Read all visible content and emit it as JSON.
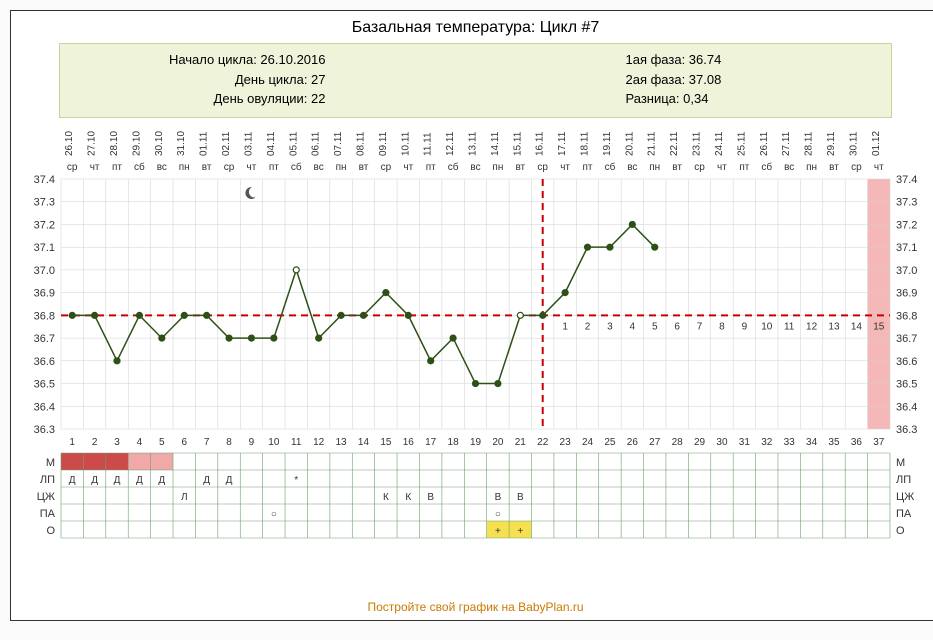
{
  "title": "Базальная температура: Цикл #7",
  "info_left": {
    "l1": "Начало цикла: 26.10.2016",
    "l2": "День цикла: 27",
    "l3": "День овуляции: 22"
  },
  "info_right": {
    "l1": "1ая фаза: 36.74",
    "l2": "2ая фаза: 37.08",
    "l3": "Разница: 0,34"
  },
  "footer": "Постройте свой график на BabyPlan.ru",
  "chart": {
    "type": "line",
    "bg": "#ffffff",
    "grid_color": "#d0d0d0",
    "line_color": "#2d5016",
    "line_width": 1.5,
    "marker_r": 3,
    "coverline": 36.8,
    "coverline_color": "#cc0000",
    "ovu_day": 22,
    "ovu_color": "#cc0000",
    "ylim": [
      36.3,
      37.4
    ],
    "ytick_step": 0.1,
    "dpo_start_day": 23,
    "dpo_color": "#cc5555",
    "pink_col_day": 37,
    "pink_fill": "#f5b8b8",
    "moon_day": 9,
    "days": [
      {
        "n": 1,
        "date": "26.10",
        "dow": "ср",
        "t": 36.8
      },
      {
        "n": 2,
        "date": "27.10",
        "dow": "чт",
        "t": 36.8
      },
      {
        "n": 3,
        "date": "28.10",
        "dow": "пт",
        "t": 36.6
      },
      {
        "n": 4,
        "date": "29.10",
        "dow": "сб",
        "t": 36.8
      },
      {
        "n": 5,
        "date": "30.10",
        "dow": "вс",
        "t": 36.7
      },
      {
        "n": 6,
        "date": "31.10",
        "dow": "пн",
        "t": 36.8
      },
      {
        "n": 7,
        "date": "01.11",
        "dow": "вт",
        "t": 36.8
      },
      {
        "n": 8,
        "date": "02.11",
        "dow": "ср",
        "t": 36.7
      },
      {
        "n": 9,
        "date": "03.11",
        "dow": "чт",
        "t": 36.7
      },
      {
        "n": 10,
        "date": "04.11",
        "dow": "пт",
        "t": 36.7
      },
      {
        "n": 11,
        "date": "05.11",
        "dow": "сб",
        "t": 37.0,
        "open": true
      },
      {
        "n": 12,
        "date": "06.11",
        "dow": "вс",
        "t": 36.7
      },
      {
        "n": 13,
        "date": "07.11",
        "dow": "пн",
        "t": 36.8
      },
      {
        "n": 14,
        "date": "08.11",
        "dow": "вт",
        "t": 36.8
      },
      {
        "n": 15,
        "date": "09.11",
        "dow": "ср",
        "t": 36.9
      },
      {
        "n": 16,
        "date": "10.11",
        "dow": "чт",
        "t": 36.8
      },
      {
        "n": 17,
        "date": "11.11",
        "dow": "пт",
        "t": 36.6
      },
      {
        "n": 18,
        "date": "12.11",
        "dow": "сб",
        "t": 36.7
      },
      {
        "n": 19,
        "date": "13.11",
        "dow": "вс",
        "t": 36.5
      },
      {
        "n": 20,
        "date": "14.11",
        "dow": "пн",
        "t": 36.5
      },
      {
        "n": 21,
        "date": "15.11",
        "dow": "вт",
        "t": 36.8,
        "open": true
      },
      {
        "n": 22,
        "date": "16.11",
        "dow": "ср",
        "t": 36.8
      },
      {
        "n": 23,
        "date": "17.11",
        "dow": "чт",
        "t": 36.9
      },
      {
        "n": 24,
        "date": "18.11",
        "dow": "пт",
        "t": 37.1
      },
      {
        "n": 25,
        "date": "19.11",
        "dow": "сб",
        "t": 37.1
      },
      {
        "n": 26,
        "date": "20.11",
        "dow": "вс",
        "t": 37.2
      },
      {
        "n": 27,
        "date": "21.11",
        "dow": "пн",
        "t": 37.1
      },
      {
        "n": 28,
        "date": "22.11",
        "dow": "вт"
      },
      {
        "n": 29,
        "date": "23.11",
        "dow": "ср"
      },
      {
        "n": 30,
        "date": "24.11",
        "dow": "чт"
      },
      {
        "n": 31,
        "date": "25.11",
        "dow": "пт"
      },
      {
        "n": 32,
        "date": "26.11",
        "dow": "сб"
      },
      {
        "n": 33,
        "date": "27.11",
        "dow": "вс"
      },
      {
        "n": 34,
        "date": "28.11",
        "dow": "пн"
      },
      {
        "n": 35,
        "date": "29.11",
        "dow": "вт"
      },
      {
        "n": 36,
        "date": "30.11",
        "dow": "ср"
      },
      {
        "n": 37,
        "date": "01.12",
        "dow": "чт"
      }
    ]
  },
  "table": {
    "border_color": "#6aa06a",
    "rows": [
      "М",
      "ЛП",
      "ЦЖ",
      "ПА",
      "О"
    ],
    "mens_days": [
      {
        "d": 1,
        "shade": "dark"
      },
      {
        "d": 2,
        "shade": "dark"
      },
      {
        "d": 3,
        "shade": "dark"
      },
      {
        "d": 4,
        "shade": "light"
      },
      {
        "d": 5,
        "shade": "light"
      }
    ],
    "mens_dark": "#cc4a4a",
    "mens_light": "#f0a8a8",
    "lp": {
      "cells": [
        1,
        2,
        3,
        4,
        5,
        6,
        7,
        8
      ],
      "text": "Д",
      "skip": [
        6
      ]
    },
    "lp_star_day": 11,
    "lp_star": "*",
    "lp_star_color": "#cc0000",
    "czh": [
      {
        "d": 6,
        "t": "Л"
      },
      {
        "d": 15,
        "t": "К"
      },
      {
        "d": 16,
        "t": "К"
      },
      {
        "d": 17,
        "t": "В"
      },
      {
        "d": 20,
        "t": "В"
      },
      {
        "d": 21,
        "t": "В"
      }
    ],
    "pa": [
      {
        "d": 10,
        "t": "○"
      },
      {
        "d": 20,
        "t": "○"
      }
    ],
    "o": [
      {
        "d": 20,
        "t": "+",
        "bg": "#f5e050"
      },
      {
        "d": 21,
        "t": "+",
        "bg": "#f5e050"
      }
    ]
  }
}
